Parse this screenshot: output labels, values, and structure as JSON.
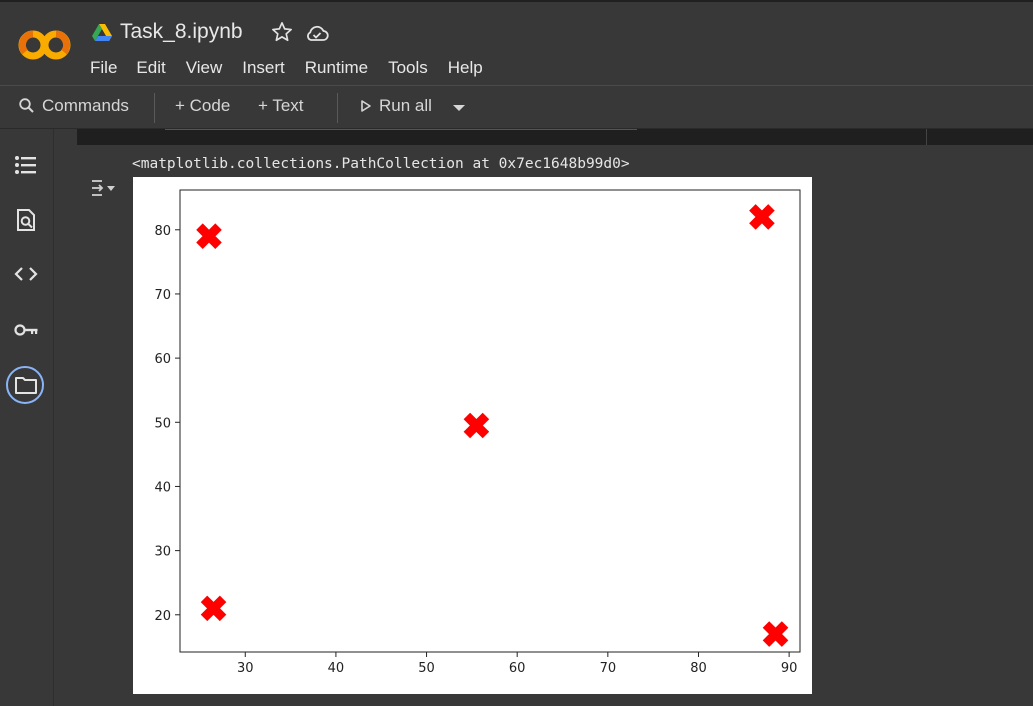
{
  "app": {
    "logo_text": "CO",
    "title": "Task_8.ipynb",
    "menu": [
      "File",
      "Edit",
      "View",
      "Insert",
      "Runtime",
      "Tools",
      "Help"
    ]
  },
  "toolbar": {
    "commands_label": "Commands",
    "code_label": "+ Code",
    "text_label": "+ Text",
    "run_all_label": "Run all"
  },
  "sidebar": {
    "icons": [
      "table-of-contents-icon",
      "find-replace-icon",
      "code-snippets-icon",
      "secrets-key-icon",
      "files-folder-icon"
    ]
  },
  "cell_output": {
    "text": "<matplotlib.collections.PathCollection at 0x7ec1648b99d0>"
  },
  "chart_data": {
    "type": "scatter",
    "marker": "X",
    "color": "#ff0000",
    "x": [
      26,
      26.5,
      55.5,
      87,
      88.5
    ],
    "y": [
      79,
      21,
      49.5,
      82,
      17
    ],
    "xlim": [
      22.8,
      91.2
    ],
    "ylim": [
      14.2,
      86.2
    ],
    "xticks": [
      30,
      40,
      50,
      60,
      70,
      80,
      90
    ],
    "yticks": [
      20,
      30,
      40,
      50,
      60,
      70,
      80
    ],
    "title": "",
    "xlabel": "",
    "ylabel": "",
    "grid": false
  }
}
